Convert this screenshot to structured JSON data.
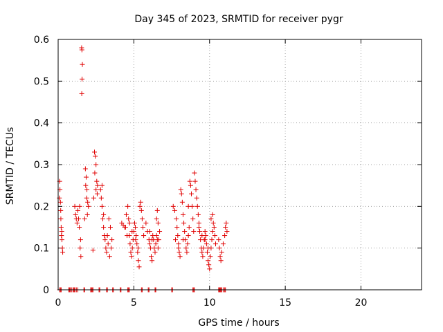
{
  "chart_data": {
    "type": "scatter",
    "title": "Day 345 of 2023, SRMTID for receiver pygr",
    "xlabel": "GPS time / hours",
    "ylabel": "SRMTID / TECUs",
    "xlim": [
      0,
      24
    ],
    "ylim": [
      0,
      0.6
    ],
    "x_ticks": [
      0,
      5,
      10,
      15,
      20
    ],
    "x_tick_labels": [
      "0",
      "5",
      "10",
      "15",
      "20"
    ],
    "y_ticks": [
      0,
      0.1,
      0.2,
      0.3,
      0.4,
      0.5,
      0.6
    ],
    "y_tick_labels": [
      "0",
      "0.1",
      "0.2",
      "0.3",
      "0.4",
      "0.5",
      "0.6"
    ],
    "grid": true,
    "marker": "+",
    "color": "#e00000",
    "series": [
      {
        "name": "SRMTID",
        "points": [
          [
            0.1,
            0.26
          ],
          [
            0.12,
            0.24
          ],
          [
            0.15,
            0.21
          ],
          [
            0.18,
            0.17
          ],
          [
            0.2,
            0.15
          ],
          [
            0.22,
            0.13
          ],
          [
            0.25,
            0.12
          ],
          [
            0.28,
            0.1
          ],
          [
            0.3,
            0.09
          ],
          [
            0.08,
            0.22
          ],
          [
            0.17,
            0.19
          ],
          [
            0.24,
            0.14
          ],
          [
            1.1,
            0.2
          ],
          [
            1.15,
            0.18
          ],
          [
            1.2,
            0.17
          ],
          [
            1.25,
            0.16
          ],
          [
            1.3,
            0.19
          ],
          [
            1.35,
            0.17
          ],
          [
            1.4,
            0.15
          ],
          [
            1.45,
            0.1
          ],
          [
            1.5,
            0.08
          ],
          [
            1.55,
            0.58
          ],
          [
            1.57,
            0.575
          ],
          [
            1.6,
            0.54
          ],
          [
            1.58,
            0.505
          ],
          [
            1.56,
            0.47
          ],
          [
            1.42,
            0.2
          ],
          [
            1.48,
            0.12
          ],
          [
            1.8,
            0.29
          ],
          [
            1.85,
            0.27
          ],
          [
            1.9,
            0.24
          ],
          [
            1.95,
            0.21
          ],
          [
            2.0,
            0.2
          ],
          [
            1.82,
            0.25
          ],
          [
            1.88,
            0.22
          ],
          [
            1.93,
            0.18
          ],
          [
            1.75,
            0.17
          ],
          [
            2.3,
            0.095
          ],
          [
            2.35,
            0.22
          ],
          [
            2.4,
            0.33
          ],
          [
            2.45,
            0.32
          ],
          [
            2.5,
            0.3
          ],
          [
            2.55,
            0.26
          ],
          [
            2.6,
            0.25
          ],
          [
            2.5,
            0.24
          ],
          [
            2.42,
            0.28
          ],
          [
            2.58,
            0.23
          ],
          [
            2.8,
            0.24
          ],
          [
            2.85,
            0.22
          ],
          [
            2.9,
            0.2
          ],
          [
            2.95,
            0.17
          ],
          [
            3.0,
            0.15
          ],
          [
            3.05,
            0.13
          ],
          [
            3.1,
            0.12
          ],
          [
            3.15,
            0.1
          ],
          [
            3.2,
            0.09
          ],
          [
            2.9,
            0.25
          ],
          [
            3.0,
            0.18
          ],
          [
            3.3,
            0.11
          ],
          [
            3.4,
            0.08
          ],
          [
            3.5,
            0.1
          ],
          [
            3.45,
            0.15
          ],
          [
            3.35,
            0.17
          ],
          [
            3.25,
            0.13
          ],
          [
            3.55,
            0.12
          ],
          [
            4.2,
            0.16
          ],
          [
            4.3,
            0.155
          ],
          [
            4.4,
            0.15
          ],
          [
            4.5,
            0.18
          ],
          [
            4.6,
            0.2
          ],
          [
            4.65,
            0.17
          ],
          [
            4.7,
            0.13
          ],
          [
            4.75,
            0.11
          ],
          [
            4.8,
            0.09
          ],
          [
            4.85,
            0.08
          ],
          [
            4.9,
            0.1
          ],
          [
            4.95,
            0.12
          ],
          [
            5.0,
            0.14
          ],
          [
            5.05,
            0.16
          ],
          [
            5.1,
            0.15
          ],
          [
            5.15,
            0.13
          ],
          [
            5.2,
            0.11
          ],
          [
            5.25,
            0.09
          ],
          [
            5.3,
            0.07
          ],
          [
            5.35,
            0.055
          ],
          [
            4.55,
            0.13
          ],
          [
            4.45,
            0.15
          ],
          [
            5.4,
            0.2
          ],
          [
            5.45,
            0.21
          ],
          [
            5.5,
            0.19
          ],
          [
            5.55,
            0.17
          ],
          [
            5.6,
            0.15
          ],
          [
            5.65,
            0.13
          ],
          [
            4.72,
            0.16
          ],
          [
            4.88,
            0.14
          ],
          [
            5.12,
            0.12
          ],
          [
            5.28,
            0.1
          ],
          [
            5.8,
            0.16
          ],
          [
            5.9,
            0.14
          ],
          [
            6.0,
            0.12
          ],
          [
            6.05,
            0.11
          ],
          [
            6.1,
            0.1
          ],
          [
            6.15,
            0.08
          ],
          [
            6.2,
            0.07
          ],
          [
            6.25,
            0.13
          ],
          [
            6.3,
            0.12
          ],
          [
            6.35,
            0.1
          ],
          [
            6.4,
            0.09
          ],
          [
            6.45,
            0.11
          ],
          [
            6.5,
            0.13
          ],
          [
            6.55,
            0.12
          ],
          [
            6.6,
            0.1
          ],
          [
            6.65,
            0.12
          ],
          [
            6.7,
            0.14
          ],
          [
            6.5,
            0.17
          ],
          [
            6.55,
            0.19
          ],
          [
            6.6,
            0.16
          ],
          [
            6.2,
            0.12
          ],
          [
            6.05,
            0.14
          ],
          [
            7.6,
            0.2
          ],
          [
            7.7,
            0.19
          ],
          [
            7.8,
            0.17
          ],
          [
            7.85,
            0.15
          ],
          [
            7.9,
            0.13
          ],
          [
            7.95,
            0.11
          ],
          [
            8.0,
            0.09
          ],
          [
            8.05,
            0.08
          ],
          [
            8.1,
            0.24
          ],
          [
            8.15,
            0.23
          ],
          [
            8.2,
            0.21
          ],
          [
            8.25,
            0.18
          ],
          [
            8.3,
            0.16
          ],
          [
            8.35,
            0.14
          ],
          [
            8.4,
            0.12
          ],
          [
            8.45,
            0.1
          ],
          [
            8.5,
            0.09
          ],
          [
            8.55,
            0.11
          ],
          [
            8.6,
            0.13
          ],
          [
            8.65,
            0.15
          ],
          [
            8.7,
            0.26
          ],
          [
            8.75,
            0.25
          ],
          [
            8.8,
            0.23
          ],
          [
            8.85,
            0.2
          ],
          [
            8.9,
            0.17
          ],
          [
            8.95,
            0.14
          ],
          [
            7.75,
            0.12
          ],
          [
            7.95,
            0.1
          ],
          [
            8.25,
            0.12
          ],
          [
            8.6,
            0.2
          ],
          [
            9.0,
            0.28
          ],
          [
            9.05,
            0.26
          ],
          [
            9.1,
            0.24
          ],
          [
            9.15,
            0.22
          ],
          [
            9.2,
            0.2
          ],
          [
            9.25,
            0.18
          ],
          [
            9.3,
            0.16
          ],
          [
            9.35,
            0.14
          ],
          [
            9.4,
            0.12
          ],
          [
            9.45,
            0.1
          ],
          [
            9.5,
            0.09
          ],
          [
            9.55,
            0.08
          ],
          [
            9.6,
            0.1
          ],
          [
            9.65,
            0.12
          ],
          [
            9.7,
            0.14
          ],
          [
            9.75,
            0.13
          ],
          [
            9.8,
            0.11
          ],
          [
            9.85,
            0.09
          ],
          [
            9.9,
            0.07
          ],
          [
            9.95,
            0.06
          ],
          [
            10.0,
            0.05
          ],
          [
            10.05,
            0.08
          ],
          [
            10.1,
            0.1
          ],
          [
            10.15,
            0.12
          ],
          [
            10.2,
            0.14
          ],
          [
            10.25,
            0.16
          ],
          [
            10.3,
            0.15
          ],
          [
            10.35,
            0.13
          ],
          [
            10.4,
            0.11
          ],
          [
            9.3,
            0.15
          ],
          [
            9.5,
            0.13
          ],
          [
            9.7,
            0.12
          ],
          [
            9.9,
            0.1
          ],
          [
            10.1,
            0.17
          ],
          [
            10.2,
            0.18
          ],
          [
            10.6,
            0.12
          ],
          [
            10.65,
            0.1
          ],
          [
            10.7,
            0.08
          ],
          [
            10.75,
            0.07
          ],
          [
            10.8,
            0.09
          ],
          [
            10.9,
            0.11
          ],
          [
            11.0,
            0.13
          ],
          [
            11.05,
            0.15
          ],
          [
            11.1,
            0.16
          ],
          [
            11.15,
            0.14
          ]
        ],
        "zero_points": [
          0.1,
          0.15,
          0.2,
          0.7,
          0.75,
          0.8,
          0.9,
          1.0,
          1.05,
          1.1,
          1.2,
          1.3,
          1.7,
          1.75,
          2.15,
          2.2,
          2.25,
          2.3,
          2.7,
          2.75,
          3.2,
          3.25,
          3.6,
          3.65,
          4.1,
          4.15,
          4.6,
          4.65,
          4.7,
          5.5,
          5.55,
          5.95,
          6.0,
          6.4,
          6.45,
          7.5,
          7.55,
          8.9,
          8.95,
          9.0,
          10.6,
          10.65,
          10.7,
          10.75,
          10.8,
          10.9,
          11.0,
          11.05
        ]
      }
    ]
  }
}
